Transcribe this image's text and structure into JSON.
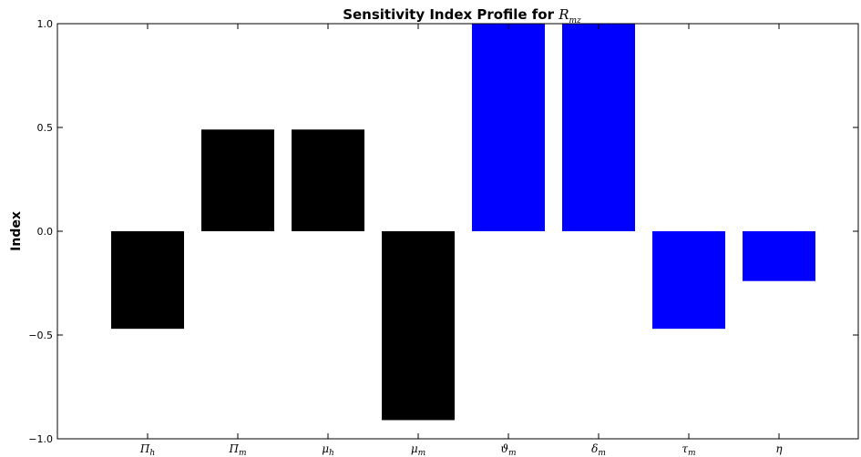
{
  "chart_data": {
    "type": "bar",
    "title_prefix": "Sensitivity Index Profile for ",
    "title_symbol": "R",
    "title_symbol_sub": "mz",
    "ylabel": "Index",
    "ylim": [
      -1.0,
      1.0
    ],
    "yticks": [
      {
        "value": 1.0,
        "label": "1.0"
      },
      {
        "value": 0.5,
        "label": "0.5"
      },
      {
        "value": 0.0,
        "label": "0.0"
      },
      {
        "value": -0.5,
        "label": "−0.5"
      },
      {
        "value": -1.0,
        "label": "−1.0"
      }
    ],
    "categories": [
      {
        "symbol": "Π",
        "sub": "h"
      },
      {
        "symbol": "Π",
        "sub": "m"
      },
      {
        "symbol": "μ",
        "sub": "h"
      },
      {
        "symbol": "μ",
        "sub": "m"
      },
      {
        "symbol": "ϑ",
        "sub": "m"
      },
      {
        "symbol": "δ",
        "sub": "m"
      },
      {
        "symbol": "τ",
        "sub": "m"
      },
      {
        "symbol": "η",
        "sub": ""
      }
    ],
    "values": [
      -0.47,
      0.49,
      0.49,
      -0.91,
      1.0,
      1.0,
      -0.47,
      -0.24
    ],
    "colors": [
      "#000000",
      "#000000",
      "#000000",
      "#000000",
      "#0000ff",
      "#0000ff",
      "#0000ff",
      "#0000ff"
    ],
    "grid": false,
    "legend": "none"
  }
}
